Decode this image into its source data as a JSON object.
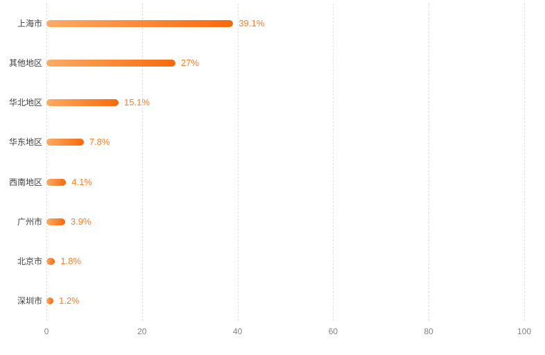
{
  "chart_data": {
    "type": "bar",
    "orientation": "horizontal",
    "title": "",
    "xlabel": "",
    "ylabel": "",
    "categories": [
      "上海市",
      "其他地区",
      "华北地区",
      "华东地区",
      "西南地区",
      "广州市",
      "北京市",
      "深圳市"
    ],
    "values": [
      39.1,
      27,
      15.1,
      7.8,
      4.1,
      3.9,
      1.8,
      1.2
    ],
    "value_labels": [
      "39.1%",
      "27%",
      "15.1%",
      "7.8%",
      "4.1%",
      "3.9%",
      "1.8%",
      "1.2%"
    ],
    "xticks": [
      0,
      20,
      40,
      60,
      80,
      100
    ],
    "xtick_labels": [
      "0",
      "20",
      "40",
      "60",
      "80",
      "100"
    ],
    "xlim": [
      0,
      100
    ],
    "grid": "vertical-dashed",
    "legend": "none",
    "colors": {
      "bar_gradient_start": "#FBAB64",
      "bar_gradient_end": "#F8690C",
      "value_label": "#FB7D1F",
      "category_label": "#3F3F3F",
      "tick_label": "#828282",
      "gridline": "#E0E0E0",
      "background": "#FFFFFF"
    }
  }
}
